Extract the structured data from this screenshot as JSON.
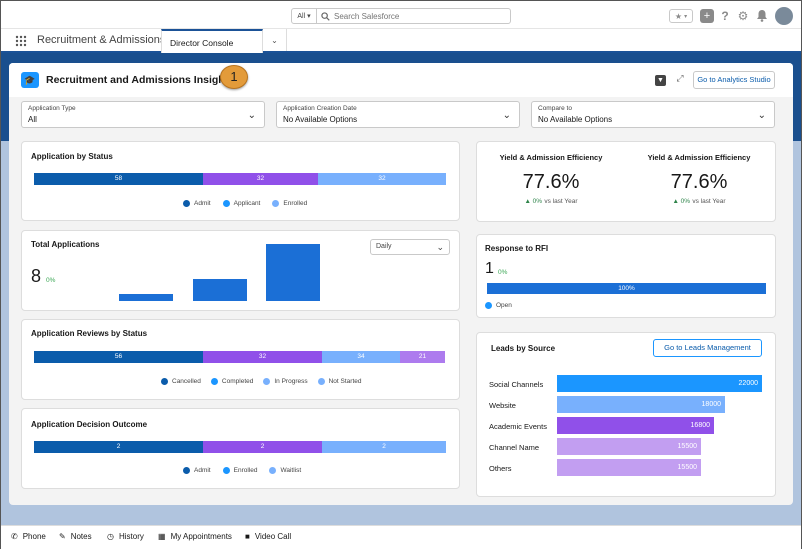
{
  "header": {
    "search_scope": "All",
    "search_placeholder": "Search Salesforce"
  },
  "nav": {
    "app_name": "Recruitment & Admissions",
    "tab_label": "Director Console"
  },
  "dashboard": {
    "title": "Recruitment and Admissions Insights",
    "badge": "1",
    "analytics_button": "Go to Analytics Studio"
  },
  "filters": [
    {
      "label": "Application Type",
      "value": "All"
    },
    {
      "label": "Application Creation Date",
      "value": "No Available Options"
    },
    {
      "label": "Compare to",
      "value": "No Available Options"
    }
  ],
  "status_card": {
    "title": "Application by Status",
    "segments": [
      {
        "value": "58",
        "share": 0.41,
        "color": "#0b5cab"
      },
      {
        "value": "32",
        "share": 0.28,
        "color": "#9050e9"
      },
      {
        "value": "32",
        "share": 0.31,
        "color": "#78b0fd"
      }
    ],
    "legend": [
      {
        "label": "Admit",
        "color": "#0b5cab"
      },
      {
        "label": "Applicant",
        "color": "#1b96ff"
      },
      {
        "label": "Enrolled",
        "color": "#78b0fd"
      }
    ]
  },
  "total_card": {
    "title": "Total Applications",
    "value": "8",
    "change": "0%",
    "dropdown": "Daily",
    "bars": [
      0.13,
      0.38,
      1.0
    ]
  },
  "reviews_card": {
    "title": "Application Reviews by Status",
    "segments": [
      {
        "value": "56",
        "share": 0.41,
        "color": "#0b5cab"
      },
      {
        "value": "32",
        "share": 0.29,
        "color": "#9050e9"
      },
      {
        "value": "34",
        "share": 0.19,
        "color": "#78b0fd"
      },
      {
        "value": "21",
        "share": 0.11,
        "color": "#ad7bee"
      }
    ],
    "legend": [
      {
        "label": "Cancelled",
        "color": "#0b5cab"
      },
      {
        "label": "Completed",
        "color": "#1b96ff"
      },
      {
        "label": "In Progress",
        "color": "#78b0fd"
      },
      {
        "label": "Not Started",
        "color": "#78b0fd"
      }
    ]
  },
  "decision_card": {
    "title": "Application Decision Outcome",
    "segments": [
      {
        "value": "2",
        "share": 0.41,
        "color": "#0b5cab"
      },
      {
        "value": "2",
        "share": 0.29,
        "color": "#9050e9"
      },
      {
        "value": "2",
        "share": 0.3,
        "color": "#78b0fd"
      }
    ],
    "legend": [
      {
        "label": "Admit",
        "color": "#0b5cab"
      },
      {
        "label": "Enrolled",
        "color": "#1b96ff"
      },
      {
        "label": "Waitlist",
        "color": "#78b0fd"
      }
    ]
  },
  "yield_card": {
    "items": [
      {
        "title": "Yield & Admission Efficiency",
        "value": "77.6%",
        "change": "▲ 0%",
        "note": "vs last Year"
      },
      {
        "title": "Yield & Admission Efficiency",
        "value": "77.6%",
        "change": "▲ 0%",
        "note": "vs last Year"
      }
    ]
  },
  "rfi_card": {
    "title": "Response to RFI",
    "value": "1",
    "change": "0%",
    "bar_label": "100%",
    "legend": "Open"
  },
  "leads_card": {
    "title": "Leads by Source",
    "button": "Go to Leads Management",
    "chart_data": {
      "type": "bar",
      "categories": [
        "Social Channels",
        "Website",
        "Academic Events",
        "Channel Name",
        "Others"
      ],
      "values": [
        22000,
        18000,
        16800,
        15500,
        15500
      ],
      "labels": [
        "22000",
        "18000",
        "16800",
        "15500",
        "15500"
      ],
      "colors": [
        "#1b96ff",
        "#78b0fd",
        "#9050e9",
        "#c29ef1",
        "#c29ef1"
      ],
      "xlim": [
        0,
        22000
      ]
    }
  },
  "utility": {
    "items": [
      {
        "label": "Phone",
        "icon": "phone-icon",
        "glyph": "✆"
      },
      {
        "label": "Notes",
        "icon": "notes-icon",
        "glyph": "✎"
      },
      {
        "label": "History",
        "icon": "history-icon",
        "glyph": "◷"
      },
      {
        "label": "My Appointments",
        "icon": "calendar-icon",
        "glyph": "▦"
      },
      {
        "label": "Video Call",
        "icon": "video-icon",
        "glyph": "■"
      }
    ]
  }
}
